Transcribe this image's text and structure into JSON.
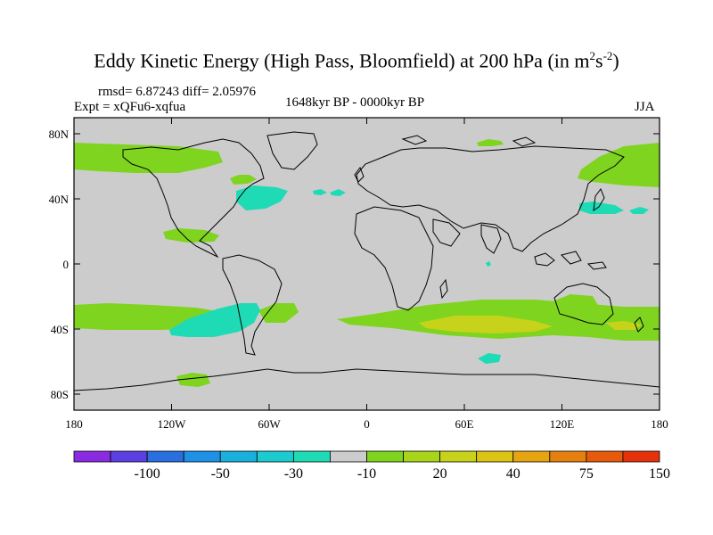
{
  "header": {
    "title_main": "Eddy Kinetic Energy (High Pass, Bloomfield) at 200 hPa (in m",
    "title_sup1": "2",
    "title_mid": "s",
    "title_sup2": "-2",
    "title_close": ")",
    "rmsd_diff": "rmsd= 6.87243 diff= 2.05976",
    "expt": "Expt = xQFu6-xqfua",
    "period": "1648kyr BP - 0000kyr BP",
    "season": "JJA"
  },
  "axes": {
    "x_ticks": [
      "180",
      "120W",
      "60W",
      "0",
      "60E",
      "120E",
      "180"
    ],
    "y_ticks": [
      "80N",
      "40N",
      "0",
      "40S",
      "80S"
    ]
  },
  "colorbar": {
    "colors": [
      "#8a2be2",
      "#5b3fe0",
      "#2a6fe0",
      "#1e90e6",
      "#18b0dc",
      "#1ccbd0",
      "#1edbb6",
      "#cccccc",
      "#7fd41f",
      "#a8d41a",
      "#c7d31a",
      "#dcc414",
      "#e6a510",
      "#e5800e",
      "#e65a0c",
      "#e5320a"
    ],
    "labels": [
      "-100",
      "-50",
      "-30",
      "-10",
      "20",
      "40",
      "75",
      "150"
    ]
  },
  "regions": [
    {
      "name": "north-pacific-nw",
      "category": "20",
      "color": "#7fd41f"
    },
    {
      "name": "north-atlantic-east",
      "category": "-10",
      "color": "#1edbb6"
    },
    {
      "name": "south-pacific-east",
      "category": "-10",
      "color": "#1edbb6"
    },
    {
      "name": "southern-ocean-indian",
      "category": "20",
      "color": "#7fd41f"
    },
    {
      "name": "southern-indian-core",
      "category": "40",
      "color": "#c7d31a"
    }
  ]
}
